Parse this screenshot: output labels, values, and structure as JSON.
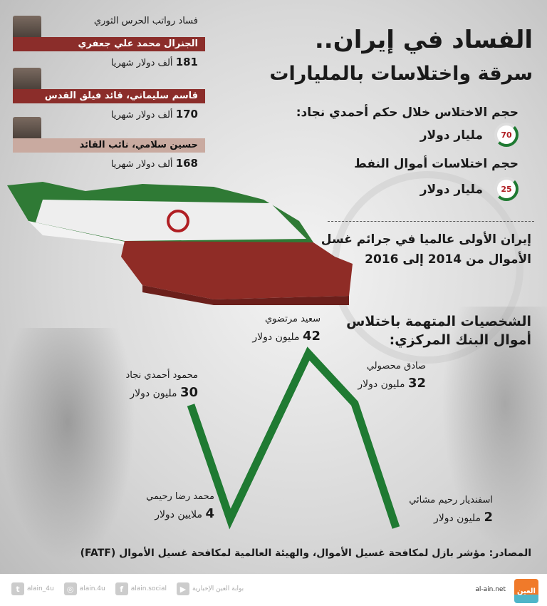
{
  "header": {
    "title_line1": "الفساد في إيران..",
    "title_line2": "سرقة واختلاسات بالمليارات"
  },
  "stats": [
    {
      "heading": "حجم الاختلاس خلال حكم أحمدي نجاد:",
      "value": "70",
      "unit": "مليار دولار"
    },
    {
      "heading": "حجم اختلاسات أموال النفط",
      "value": "25",
      "unit": "مليار دولار"
    }
  ],
  "fact": {
    "line1": "إيران الأولى عالميا في جرائم غسل",
    "line2": "الأموال من 2014 إلى 2016"
  },
  "guards": {
    "caption": "فساد رواتب الحرس الثوري",
    "people": [
      {
        "name": "الجنرال محمد علي جعفري",
        "amount": "181",
        "unit": "ألف دولار شهريا"
      },
      {
        "name": "قاسم سليماني، قائد فيلق القدس",
        "amount": "170",
        "unit": "ألف دولار شهريا"
      },
      {
        "name": "حسين سلامي، نائب القائد",
        "amount": "168",
        "unit": "ألف دولار شهريا"
      }
    ]
  },
  "bank": {
    "heading_line1": "الشخصيات المتهمة باختلاس",
    "heading_line2": "أموال البنك المركزي:",
    "people": [
      {
        "name": "محمود أحمدي نجاد",
        "amount": "30",
        "unit": "مليون دولار"
      },
      {
        "name": "محمد رضا رحيمي",
        "amount": "4",
        "unit": "ملايين دولار"
      },
      {
        "name": "سعيد مرتضوي",
        "amount": "42",
        "unit": "مليون دولار"
      },
      {
        "name": "صادق محصولي",
        "amount": "32",
        "unit": "مليون دولار"
      },
      {
        "name": "اسفنديار رحيم مشائي",
        "amount": "2",
        "unit": "مليون دولار"
      }
    ]
  },
  "sources": "المصادر: مؤشر بازل لمكافحة غسيل الأموال، والهيئة العالمية لمكافحة غسيل الأموال (FATF)",
  "footer": {
    "site": "al-ain.net",
    "logo_text": "العين",
    "social": [
      {
        "icon": "twitter-icon",
        "glyph": "t",
        "handle": "alain_4u"
      },
      {
        "icon": "instagram-icon",
        "glyph": "◎",
        "handle": "alain.4u"
      },
      {
        "icon": "facebook-icon",
        "glyph": "f",
        "handle": "alain.social"
      },
      {
        "icon": "youtube-icon",
        "glyph": "▶",
        "handle": "بوابة العين الإخبارية"
      }
    ]
  },
  "colors": {
    "green": "#1f7a32",
    "red": "#8b2d2a",
    "accent": "#b01e23",
    "logo": "#f07a2a"
  }
}
